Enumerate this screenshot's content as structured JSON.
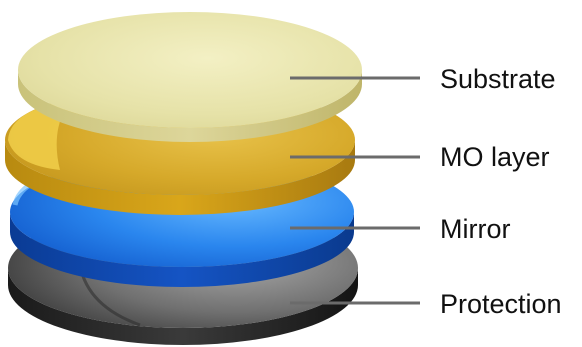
{
  "diagram": {
    "layers": [
      {
        "label": "Substrate",
        "color_light": "#f2efbf",
        "color_mid": "#e0dd9a",
        "color_dark": "#bdb56a"
      },
      {
        "label": "MO layer",
        "color_light": "#f4cf45",
        "color_mid": "#d9a820",
        "color_dark": "#a87a12"
      },
      {
        "label": "Mirror",
        "color_light": "#5bb0ff",
        "color_mid": "#1f78e6",
        "color_dark": "#0d3f9b"
      },
      {
        "label": "Protection",
        "color_light": "#9a9a9a",
        "color_mid": "#5a5a5a",
        "color_dark": "#262626"
      }
    ],
    "leader_color": "#6b6b6b"
  }
}
